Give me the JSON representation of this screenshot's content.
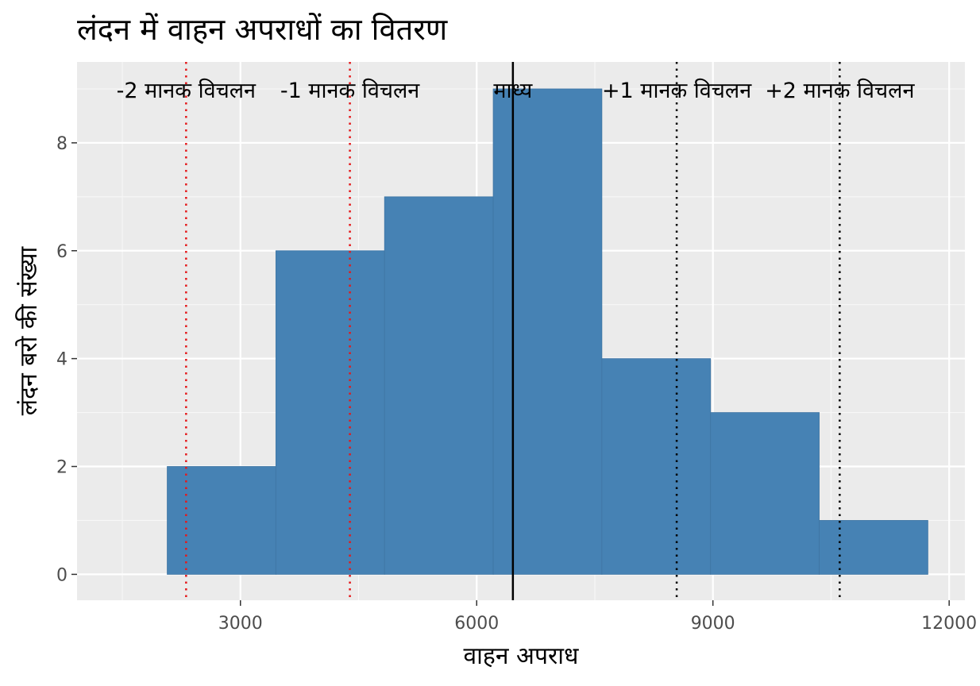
{
  "chart_data": {
    "type": "bar",
    "title": "लंदन में वाहन अपराधों का वितरण",
    "xlabel": "वाहन अपराध",
    "ylabel": "लंदन बरो की संख्या",
    "xlim": [
      925,
      12200
    ],
    "ylim": [
      -0.48,
      9.5
    ],
    "x_ticks": [
      3000,
      6000,
      9000,
      12000
    ],
    "x_tick_labels": [
      "3000",
      "6000",
      "9000",
      "12000"
    ],
    "y_ticks": [
      0,
      2,
      4,
      6,
      8
    ],
    "y_tick_labels": [
      "0",
      "2",
      "4",
      "6",
      "8"
    ],
    "bins": [
      {
        "x0": 2070,
        "x1": 3450,
        "count": 2
      },
      {
        "x0": 3450,
        "x1": 4830,
        "count": 6
      },
      {
        "x0": 4830,
        "x1": 6210,
        "count": 7
      },
      {
        "x0": 6210,
        "x1": 7590,
        "count": 9
      },
      {
        "x0": 7590,
        "x1": 8970,
        "count": 4
      },
      {
        "x0": 8970,
        "x1": 10350,
        "count": 3
      },
      {
        "x0": 10350,
        "x1": 11730,
        "count": 1
      }
    ],
    "reference_lines": [
      {
        "label": "-2 मानक विचलन",
        "x": 2310,
        "style": "dotted",
        "color": "#e41a1c"
      },
      {
        "label": "-1 मानक विचलन",
        "x": 4390,
        "style": "dotted",
        "color": "#e41a1c"
      },
      {
        "label": "माध्य",
        "x": 6460,
        "style": "solid",
        "color": "#000000"
      },
      {
        "label": "+1 मानक विचलन",
        "x": 8540,
        "style": "dotted",
        "color": "#000000"
      },
      {
        "label": "+2 मानक विचलन",
        "x": 10610,
        "style": "dotted",
        "color": "#000000"
      }
    ],
    "bar_color": "#4682b4",
    "panel_background": "#ebebeb",
    "grid": true,
    "legend": "none"
  }
}
